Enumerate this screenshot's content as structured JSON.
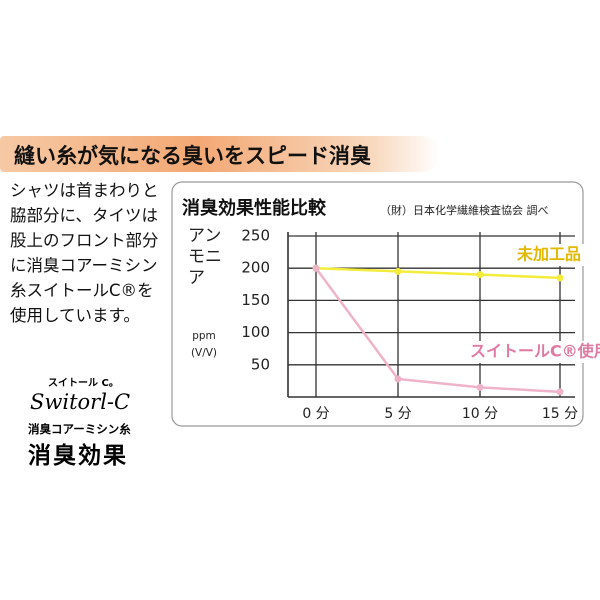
{
  "header": {
    "title": "縫い糸が気になる臭いをスピード消臭"
  },
  "body": {
    "text": "シャツは首まわりと脇部分に、タイツは股上のフロント部分に消臭コアーミシン糸スイトールC®を使用しています。"
  },
  "brand": {
    "small": "スイトール C。",
    "script": "Switorl-C",
    "subtitle": "消臭コアーミシン糸",
    "title": "消臭効果"
  },
  "chart_data": {
    "type": "line",
    "title": "消臭効果性能比較",
    "subtitle": "（財）日本化学繊維検査協会 調べ",
    "y_label": "アンモニア",
    "y_unit": "ppm (V/V)",
    "categories": [
      "0 分",
      "5 分",
      "10 分",
      "15 分"
    ],
    "series": [
      {
        "name": "未加工品",
        "color": "#f3ec3a",
        "label_color": "#e2b800",
        "values": [
          200,
          195,
          190,
          185
        ]
      },
      {
        "name": "スイトールC®使用品",
        "color": "#efb3c9",
        "label_color": "#e07aa3",
        "values": [
          200,
          28,
          15,
          8
        ]
      }
    ],
    "ylim": [
      0,
      250
    ],
    "yticks": [
      50,
      100,
      150,
      200,
      250
    ],
    "grid": true
  }
}
